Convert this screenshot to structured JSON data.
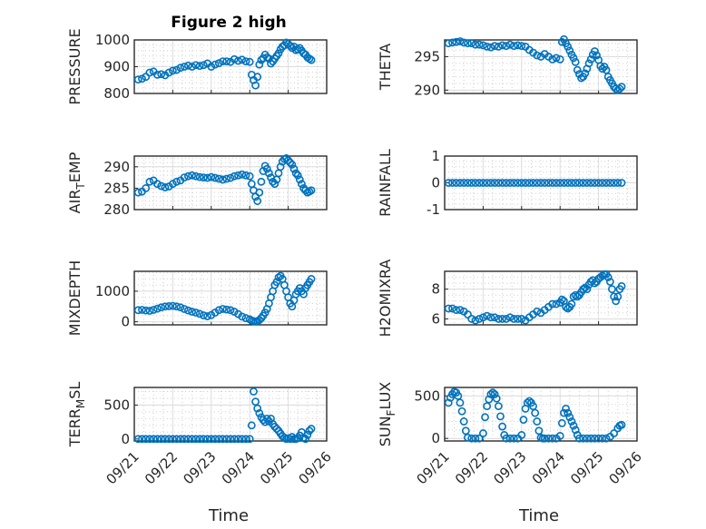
{
  "figure_title": "Figure 2 high",
  "colors": {
    "marker": "#0072BD",
    "axis": "#262626"
  },
  "xticks": [
    "09/21",
    "09/22",
    "09/23",
    "09/24",
    "09/25",
    "09/26"
  ],
  "xlabel": "Time",
  "chart_data": [
    {
      "type": "scatter",
      "ylabel": "PRESSURE",
      "ylim": [
        800,
        1000
      ],
      "yticks": [
        "800",
        "900",
        "1000"
      ],
      "grid": true,
      "title": "Figure 2 high",
      "x": [
        0.1,
        0.2,
        0.3,
        0.4,
        0.5,
        0.6,
        0.7,
        0.8,
        0.9,
        1.0,
        1.1,
        1.2,
        1.3,
        1.4,
        1.5,
        1.6,
        1.7,
        1.8,
        1.9,
        2.0,
        2.1,
        2.2,
        2.3,
        2.4,
        2.5,
        2.6,
        2.7,
        2.8,
        2.9,
        3.0,
        3.05,
        3.1,
        3.15,
        3.2,
        3.25,
        3.3,
        3.35,
        3.4,
        3.45,
        3.5,
        3.55,
        3.6,
        3.65,
        3.7,
        3.75,
        3.8,
        3.85,
        3.9,
        3.95,
        4.0,
        4.05,
        4.1,
        4.15,
        4.2,
        4.25,
        4.3,
        4.35,
        4.4,
        4.45,
        4.5,
        4.55,
        4.6
      ],
      "y": [
        852,
        855,
        862,
        878,
        882,
        870,
        872,
        868,
        878,
        885,
        888,
        896,
        900,
        904,
        900,
        906,
        903,
        906,
        912,
        900,
        908,
        913,
        920,
        920,
        918,
        928,
        922,
        926,
        920,
        918,
        870,
        850,
        830,
        862,
        908,
        925,
        932,
        945,
        935,
        930,
        912,
        920,
        930,
        940,
        950,
        965,
        975,
        980,
        990,
        985,
        978,
        970,
        975,
        962,
        965,
        970,
        960,
        950,
        945,
        935,
        930,
        925
      ]
    },
    {
      "type": "scatter",
      "ylabel": "THETA",
      "ylim": [
        289.5,
        297.5
      ],
      "yticks": [
        "290",
        "295"
      ],
      "grid": true,
      "x": [
        0.1,
        0.2,
        0.3,
        0.4,
        0.5,
        0.6,
        0.7,
        0.8,
        0.9,
        1.0,
        1.1,
        1.2,
        1.3,
        1.4,
        1.5,
        1.6,
        1.7,
        1.8,
        1.9,
        2.0,
        2.1,
        2.2,
        2.3,
        2.4,
        2.5,
        2.6,
        2.7,
        2.8,
        2.9,
        3.0,
        3.05,
        3.1,
        3.15,
        3.2,
        3.25,
        3.3,
        3.35,
        3.4,
        3.45,
        3.5,
        3.55,
        3.6,
        3.65,
        3.7,
        3.75,
        3.8,
        3.85,
        3.9,
        3.95,
        4.0,
        4.05,
        4.1,
        4.15,
        4.2,
        4.25,
        4.3,
        4.35,
        4.4,
        4.45,
        4.5,
        4.55,
        4.6
      ],
      "y": [
        297,
        297.1,
        297.2,
        297.3,
        297.1,
        297.0,
        297.0,
        296.8,
        296.8,
        296.7,
        296.5,
        296.4,
        296.6,
        296.5,
        296.7,
        296.6,
        296.8,
        296.6,
        296.7,
        296.6,
        296.5,
        296.0,
        295.6,
        295.2,
        295.0,
        295.4,
        295.0,
        294.6,
        294.8,
        294.6,
        297.2,
        297.6,
        297.0,
        296.5,
        295.9,
        295.3,
        294.8,
        294.2,
        293.0,
        292.4,
        291.8,
        292.0,
        292.5,
        293.2,
        294.0,
        294.6,
        295.3,
        295.8,
        295.2,
        294.5,
        293.6,
        293.2,
        293.5,
        293.0,
        292.0,
        291.5,
        291.0,
        290.5,
        290.2,
        290.0,
        290.2,
        290.5
      ]
    },
    {
      "type": "scatter",
      "ylabel": "AIR_TEMP",
      "ylim": [
        280,
        292.5
      ],
      "yticks": [
        "280",
        "285",
        "290"
      ],
      "grid": true,
      "x": [
        0.1,
        0.2,
        0.3,
        0.4,
        0.5,
        0.6,
        0.7,
        0.8,
        0.9,
        1.0,
        1.1,
        1.2,
        1.3,
        1.4,
        1.5,
        1.6,
        1.7,
        1.8,
        1.9,
        2.0,
        2.1,
        2.2,
        2.3,
        2.4,
        2.5,
        2.6,
        2.7,
        2.8,
        2.9,
        3.0,
        3.05,
        3.1,
        3.15,
        3.2,
        3.25,
        3.3,
        3.35,
        3.4,
        3.45,
        3.5,
        3.55,
        3.6,
        3.65,
        3.7,
        3.75,
        3.8,
        3.85,
        3.9,
        3.95,
        4.0,
        4.05,
        4.1,
        4.15,
        4.2,
        4.25,
        4.3,
        4.35,
        4.4,
        4.45,
        4.5,
        4.55,
        4.6
      ],
      "y": [
        284,
        284.2,
        285.0,
        286.5,
        286.8,
        286.0,
        285.5,
        285.2,
        285.4,
        286.0,
        286.5,
        286.8,
        287.5,
        287.8,
        288.0,
        287.8,
        287.6,
        287.5,
        287.4,
        287.6,
        287.4,
        287.2,
        287.0,
        287.2,
        287.4,
        287.8,
        288.0,
        288.2,
        288.0,
        287.8,
        286.0,
        284.5,
        283.0,
        282.0,
        284.0,
        286.5,
        289.0,
        290.2,
        289.5,
        288.5,
        287.5,
        286.5,
        286.0,
        287.0,
        288.5,
        290.0,
        291.2,
        291.8,
        292.0,
        291.5,
        291.0,
        290.5,
        289.5,
        288.5,
        288.0,
        287.0,
        286.0,
        285.0,
        284.5,
        284.0,
        284.2,
        284.5
      ]
    },
    {
      "type": "scatter",
      "ylabel": "RAINFALL",
      "ylim": [
        -1,
        1
      ],
      "yticks": [
        "-1",
        "0",
        "1"
      ],
      "grid": true,
      "x": [
        0.1,
        0.2,
        0.3,
        0.4,
        0.5,
        0.6,
        0.7,
        0.8,
        0.9,
        1.0,
        1.1,
        1.2,
        1.3,
        1.4,
        1.5,
        1.6,
        1.7,
        1.8,
        1.9,
        2.0,
        2.1,
        2.2,
        2.3,
        2.4,
        2.5,
        2.6,
        2.7,
        2.8,
        2.9,
        3.0,
        3.1,
        3.2,
        3.3,
        3.4,
        3.5,
        3.6,
        3.7,
        3.8,
        3.9,
        4.0,
        4.1,
        4.2,
        4.3,
        4.4,
        4.5,
        4.6
      ],
      "y": [
        0,
        0,
        0,
        0,
        0,
        0,
        0,
        0,
        0,
        0,
        0,
        0,
        0,
        0,
        0,
        0,
        0,
        0,
        0,
        0,
        0,
        0,
        0,
        0,
        0,
        0,
        0,
        0,
        0,
        0,
        0,
        0,
        0,
        0,
        0,
        0,
        0,
        0,
        0,
        0,
        0,
        0,
        0,
        0,
        0,
        0
      ]
    },
    {
      "type": "scatter",
      "ylabel": "MIXDEPTH",
      "ylim": [
        -100,
        1650
      ],
      "yticks": [
        "0",
        "1000"
      ],
      "grid": true,
      "x": [
        0.1,
        0.2,
        0.3,
        0.4,
        0.5,
        0.6,
        0.7,
        0.8,
        0.9,
        1.0,
        1.1,
        1.2,
        1.3,
        1.4,
        1.5,
        1.6,
        1.7,
        1.8,
        1.9,
        2.0,
        2.1,
        2.2,
        2.3,
        2.4,
        2.5,
        2.6,
        2.7,
        2.8,
        2.9,
        3.0,
        3.05,
        3.1,
        3.15,
        3.2,
        3.25,
        3.3,
        3.35,
        3.4,
        3.45,
        3.5,
        3.55,
        3.6,
        3.65,
        3.7,
        3.75,
        3.8,
        3.85,
        3.9,
        3.95,
        4.0,
        4.05,
        4.1,
        4.15,
        4.2,
        4.25,
        4.3,
        4.35,
        4.4,
        4.45,
        4.5,
        4.55,
        4.6
      ],
      "y": [
        380,
        390,
        370,
        360,
        390,
        430,
        470,
        500,
        510,
        520,
        500,
        470,
        420,
        370,
        330,
        300,
        260,
        210,
        180,
        220,
        300,
        380,
        420,
        400,
        380,
        330,
        250,
        170,
        120,
        80,
        40,
        20,
        10,
        20,
        60,
        120,
        200,
        300,
        420,
        600,
        800,
        1000,
        1200,
        1300,
        1450,
        1500,
        1400,
        1200,
        1000,
        800,
        600,
        500,
        700,
        900,
        1000,
        1100,
        1000,
        900,
        1100,
        1200,
        1300,
        1400
      ]
    },
    {
      "type": "scatter",
      "ylabel": "H2OMIXRA",
      "ylim": [
        5.6,
        9.2
      ],
      "yticks": [
        "6",
        "8"
      ],
      "grid": true,
      "x": [
        0.1,
        0.2,
        0.3,
        0.4,
        0.5,
        0.6,
        0.7,
        0.8,
        0.9,
        1.0,
        1.1,
        1.2,
        1.3,
        1.4,
        1.5,
        1.6,
        1.7,
        1.8,
        1.9,
        2.0,
        2.1,
        2.2,
        2.3,
        2.4,
        2.5,
        2.6,
        2.7,
        2.8,
        2.9,
        3.0,
        3.05,
        3.1,
        3.15,
        3.2,
        3.25,
        3.3,
        3.35,
        3.4,
        3.45,
        3.5,
        3.55,
        3.6,
        3.65,
        3.7,
        3.75,
        3.8,
        3.85,
        3.9,
        3.95,
        4.0,
        4.05,
        4.1,
        4.15,
        4.2,
        4.25,
        4.3,
        4.35,
        4.4,
        4.45,
        4.5,
        4.55,
        4.6
      ],
      "y": [
        6.7,
        6.7,
        6.6,
        6.6,
        6.5,
        6.3,
        6.0,
        5.9,
        6.0,
        6.1,
        6.2,
        6.1,
        6.1,
        6.0,
        6.0,
        6.0,
        6.1,
        6.0,
        6.0,
        6.0,
        5.9,
        6.1,
        6.3,
        6.5,
        6.4,
        6.6,
        6.8,
        7.0,
        7.0,
        7.1,
        7.3,
        7.2,
        6.8,
        6.7,
        6.8,
        7.0,
        7.5,
        7.6,
        7.5,
        7.6,
        7.8,
        8.0,
        8.1,
        8.0,
        8.3,
        8.5,
        8.6,
        8.4,
        8.5,
        8.7,
        8.8,
        8.9,
        9.0,
        9.0,
        8.8,
        8.5,
        8.0,
        7.5,
        7.2,
        7.5,
        8.0,
        8.2
      ]
    },
    {
      "type": "scatter",
      "ylabel": "TERR_MSL",
      "ylim": [
        -30,
        760
      ],
      "yticks": [
        "0",
        "500"
      ],
      "grid": true,
      "x": [
        0.1,
        0.2,
        0.3,
        0.4,
        0.5,
        0.6,
        0.7,
        0.8,
        0.9,
        1.0,
        1.1,
        1.2,
        1.3,
        1.4,
        1.5,
        1.6,
        1.7,
        1.8,
        1.9,
        2.0,
        2.1,
        2.2,
        2.3,
        2.4,
        2.5,
        2.6,
        2.7,
        2.8,
        2.9,
        3.0,
        3.05,
        3.1,
        3.15,
        3.2,
        3.25,
        3.3,
        3.35,
        3.4,
        3.45,
        3.5,
        3.55,
        3.6,
        3.65,
        3.7,
        3.75,
        3.8,
        3.85,
        3.9,
        3.95,
        4.0,
        4.05,
        4.1,
        4.15,
        4.2,
        4.25,
        4.3,
        4.35,
        4.4,
        4.45,
        4.5,
        4.55,
        4.6
      ],
      "y": [
        0,
        0,
        0,
        0,
        0,
        0,
        0,
        0,
        0,
        0,
        0,
        0,
        0,
        0,
        0,
        0,
        0,
        0,
        0,
        0,
        0,
        0,
        0,
        0,
        0,
        0,
        0,
        0,
        0,
        0,
        200,
        700,
        550,
        450,
        380,
        320,
        280,
        250,
        300,
        260,
        300,
        220,
        180,
        150,
        120,
        80,
        40,
        20,
        0,
        10,
        0,
        30,
        0,
        0,
        10,
        50,
        100,
        20,
        0,
        60,
        120,
        150
      ]
    },
    {
      "type": "scatter",
      "ylabel": "SUN_FLUX",
      "ylim": [
        -30,
        600
      ],
      "yticks": [
        "0",
        "500"
      ],
      "grid": true,
      "x": [
        0.1,
        0.15,
        0.2,
        0.25,
        0.3,
        0.35,
        0.4,
        0.45,
        0.5,
        0.55,
        0.6,
        0.7,
        0.8,
        0.9,
        1.0,
        1.05,
        1.1,
        1.15,
        1.2,
        1.25,
        1.3,
        1.35,
        1.4,
        1.45,
        1.5,
        1.55,
        1.6,
        1.7,
        1.8,
        1.9,
        2.0,
        2.05,
        2.1,
        2.15,
        2.2,
        2.25,
        2.3,
        2.35,
        2.4,
        2.45,
        2.5,
        2.55,
        2.6,
        2.7,
        2.8,
        2.9,
        3.0,
        3.05,
        3.1,
        3.15,
        3.2,
        3.25,
        3.3,
        3.35,
        3.4,
        3.45,
        3.5,
        3.6,
        3.7,
        3.8,
        3.9,
        4.0,
        4.1,
        4.2,
        4.3,
        4.4,
        4.5,
        4.55,
        4.6
      ],
      "y": [
        420,
        480,
        520,
        550,
        540,
        500,
        420,
        320,
        200,
        90,
        10,
        0,
        0,
        0,
        60,
        250,
        380,
        460,
        520,
        540,
        520,
        470,
        380,
        260,
        140,
        40,
        0,
        0,
        0,
        0,
        40,
        220,
        350,
        420,
        440,
        420,
        380,
        300,
        200,
        90,
        10,
        0,
        0,
        0,
        0,
        0,
        30,
        180,
        300,
        350,
        300,
        250,
        200,
        150,
        100,
        40,
        0,
        0,
        0,
        0,
        0,
        0,
        0,
        0,
        20,
        60,
        120,
        150,
        160
      ]
    }
  ]
}
